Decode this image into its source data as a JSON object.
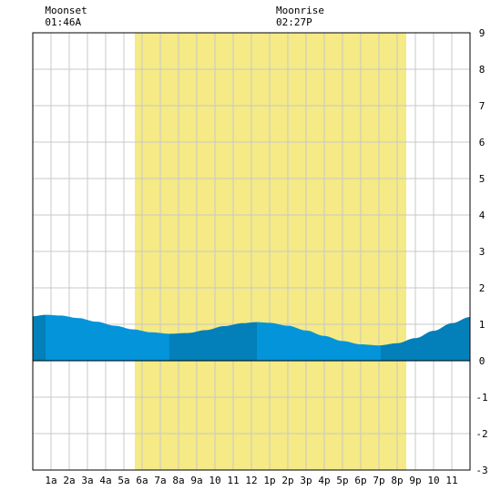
{
  "chart_data": {
    "type": "area",
    "title": "",
    "xlabel": "",
    "ylabel": "",
    "xlim": [
      0,
      24
    ],
    "ylim": [
      -3,
      9
    ],
    "grid": true,
    "x_ticks": [
      {
        "x": 1,
        "label": "1a"
      },
      {
        "x": 2,
        "label": "2a"
      },
      {
        "x": 3,
        "label": "3a"
      },
      {
        "x": 4,
        "label": "4a"
      },
      {
        "x": 5,
        "label": "5a"
      },
      {
        "x": 6,
        "label": "6a"
      },
      {
        "x": 7,
        "label": "7a"
      },
      {
        "x": 8,
        "label": "8a"
      },
      {
        "x": 9,
        "label": "9a"
      },
      {
        "x": 10,
        "label": "10"
      },
      {
        "x": 11,
        "label": "11"
      },
      {
        "x": 12,
        "label": "12"
      },
      {
        "x": 13,
        "label": "1p"
      },
      {
        "x": 14,
        "label": "2p"
      },
      {
        "x": 15,
        "label": "3p"
      },
      {
        "x": 16,
        "label": "4p"
      },
      {
        "x": 17,
        "label": "5p"
      },
      {
        "x": 18,
        "label": "6p"
      },
      {
        "x": 19,
        "label": "7p"
      },
      {
        "x": 20,
        "label": "8p"
      },
      {
        "x": 21,
        "label": "9p"
      },
      {
        "x": 22,
        "label": "10"
      },
      {
        "x": 23,
        "label": "11"
      }
    ],
    "y_ticks": [
      -3,
      -2,
      -1,
      0,
      1,
      2,
      3,
      4,
      5,
      6,
      7,
      8,
      9
    ],
    "daylight": {
      "start": 5.6,
      "end": 20.5
    },
    "moon_events": [
      {
        "label": "Moonset",
        "time": "01:46A",
        "x": 1.77
      },
      {
        "label": "Moonrise",
        "time": "02:27P",
        "x": 14.45
      }
    ],
    "tide_series": {
      "name": "",
      "x": [
        0,
        0.7,
        1.5,
        2.5,
        3.5,
        4.5,
        5.5,
        6.5,
        7.5,
        8.5,
        9.5,
        10.5,
        11.5,
        12.3,
        13,
        14,
        15,
        16,
        17,
        18,
        19,
        20,
        21,
        22,
        23,
        24
      ],
      "y": [
        1.22,
        1.26,
        1.24,
        1.17,
        1.07,
        0.96,
        0.86,
        0.78,
        0.74,
        0.76,
        0.84,
        0.95,
        1.03,
        1.06,
        1.04,
        0.96,
        0.83,
        0.68,
        0.54,
        0.45,
        0.42,
        0.48,
        0.62,
        0.82,
        1.03,
        1.2
      ]
    },
    "shading_bands": [
      {
        "start": 0,
        "end": 0.7,
        "tone": "dark"
      },
      {
        "start": 0.7,
        "end": 7.5,
        "tone": "light"
      },
      {
        "start": 7.5,
        "end": 12.3,
        "tone": "dark"
      },
      {
        "start": 12.3,
        "end": 19.1,
        "tone": "light"
      },
      {
        "start": 19.1,
        "end": 24,
        "tone": "dark"
      }
    ],
    "colors": {
      "daylight": "#f5ea85",
      "grid": "#c8c8c8",
      "water_light": "#0394d9",
      "water_dark": "#037fb9",
      "axis": "#000000"
    }
  }
}
